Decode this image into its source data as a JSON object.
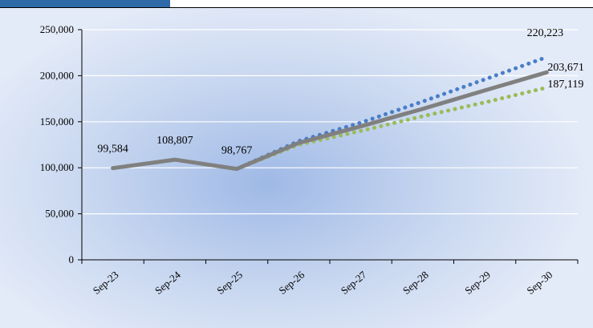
{
  "chart_data": {
    "type": "line",
    "title": "",
    "xlabel": "",
    "ylabel": "",
    "categories": [
      "Sep-23",
      "Sep-24",
      "Sep-25",
      "Sep-26",
      "Sep-27",
      "Sep-28",
      "Sep-29",
      "Sep-30"
    ],
    "ylim": [
      0,
      250000
    ],
    "yticks": [
      "0",
      "50,000",
      "100,000",
      "150,000",
      "200,000",
      "250,000"
    ],
    "grid": true,
    "series": [
      {
        "style": "solid",
        "color": "#808080",
        "values": [
          99584,
          108807,
          98767,
          127000,
          145000,
          164000,
          184000,
          203671
        ]
      },
      {
        "style": "dotted",
        "color": "#4a7ec6",
        "values": [
          null,
          null,
          98767,
          129000,
          149000,
          172000,
          196000,
          220223
        ]
      },
      {
        "style": "dotted",
        "color": "#9bbb59",
        "values": [
          99584,
          108807,
          98767,
          125000,
          140000,
          156000,
          171000,
          187119
        ]
      }
    ],
    "data_labels": [
      {
        "category": "Sep-23",
        "value": 99584,
        "text": "99,584"
      },
      {
        "category": "Sep-24",
        "value": 108807,
        "text": "108,807"
      },
      {
        "category": "Sep-25",
        "value": 98767,
        "text": "98,767"
      },
      {
        "category": "Sep-30",
        "value": 220223,
        "text": "220,223"
      },
      {
        "category": "Sep-30",
        "value": 203671,
        "text": "203,671"
      },
      {
        "category": "Sep-30",
        "value": 187119,
        "text": "187,119"
      }
    ]
  }
}
